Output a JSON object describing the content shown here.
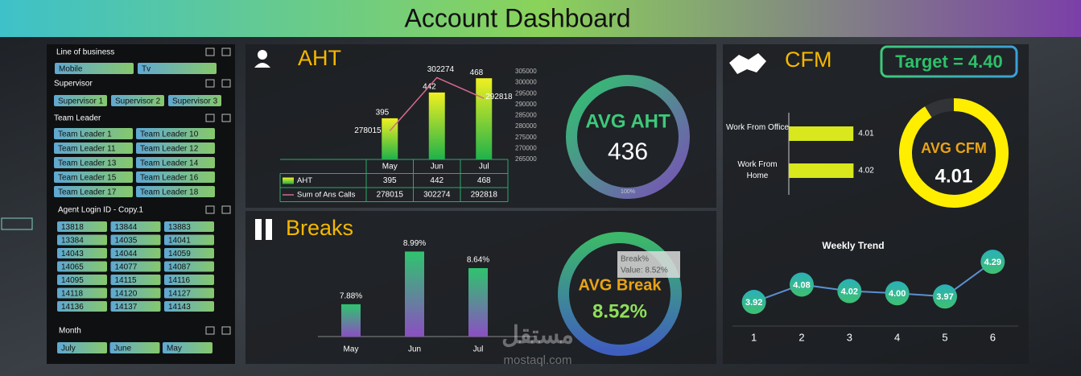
{
  "header": {
    "title": "Account Dashboard"
  },
  "slicers": [
    {
      "title": "Line of business",
      "items": [
        "Mobile",
        "Tv"
      ]
    },
    {
      "title": "Supervisor",
      "items": [
        "Supervisor 1",
        "Supervisor 2",
        "Supervisor 3"
      ]
    },
    {
      "title": "Team Leader",
      "items": [
        "Team Leader 1",
        "Team Leader 10",
        "Team Leader 11",
        "Team Leader 12",
        "Team Leader 13",
        "Team Leader 14",
        "Team Leader 15",
        "Team Leader 16",
        "Team Leader 17",
        "Team Leader 18"
      ]
    },
    {
      "title": "Agent Login ID - Copy.1",
      "items": [
        "13818",
        "13844",
        "13883",
        "13384",
        "14035",
        "14041",
        "14043",
        "14044",
        "14059",
        "14065",
        "14077",
        "14087",
        "14095",
        "14115",
        "14116",
        "14118",
        "14120",
        "14127",
        "14136",
        "14137",
        "14143"
      ]
    },
    {
      "title": "Month",
      "items": [
        "July",
        "June",
        "May"
      ]
    }
  ],
  "chart_data": [
    {
      "type": "combo",
      "title": "AHT",
      "categories": [
        "May",
        "Jun",
        "Jul"
      ],
      "ylim": [
        320,
        480
      ],
      "y2lim": [
        265000,
        305000
      ],
      "y2ticks": [
        265000,
        270000,
        275000,
        280000,
        285000,
        290000,
        295000,
        300000,
        305000
      ],
      "series": [
        {
          "name": "AHT",
          "type": "bar",
          "color": "#c8e020",
          "values": [
            395,
            442,
            468
          ]
        },
        {
          "name": "Sum of Ans Calls",
          "type": "line",
          "axis": "y2",
          "color": "#d46a8c",
          "values": [
            278015,
            302274,
            292818
          ]
        }
      ],
      "data_table": true
    },
    {
      "type": "gauge",
      "title": "AVG AHT",
      "value": 436,
      "fill": {
        "value": 100,
        "label": "100%"
      },
      "color": "#3ec97a"
    },
    {
      "type": "bar",
      "title": "Breaks",
      "categories": [
        "May",
        "Jun",
        "Jul"
      ],
      "values": [
        7.88,
        8.99,
        8.64
      ],
      "value_labels": [
        "7.88%",
        "8.99%",
        "8.64%"
      ],
      "ylim": [
        7.2,
        9.2
      ]
    },
    {
      "type": "gauge",
      "title": "AVG Break",
      "value": 8.52,
      "value_label": "8.52%",
      "tooltip": {
        "title": "Break%",
        "text": "Value: 8.52%"
      }
    },
    {
      "type": "hbar",
      "title": "CFM",
      "target": {
        "value": 4.4,
        "label": "Target = 4.40"
      },
      "categories": [
        "Work From Office",
        "Work From Home"
      ],
      "values": [
        4.01,
        4.02
      ],
      "xlim": [
        0,
        5.2
      ],
      "color": "#d8e81c"
    },
    {
      "type": "gauge",
      "title": "AVG CFM",
      "value": 4.01,
      "color": "#ffee00"
    },
    {
      "type": "line",
      "title": "Weekly Trend",
      "x": [
        1,
        2,
        3,
        4,
        5,
        6
      ],
      "values": [
        3.92,
        4.08,
        4.02,
        4.0,
        3.97,
        4.29
      ],
      "value_labels": [
        "3.92",
        "4.08",
        "4.02",
        "4.00",
        "3.97",
        "4.29"
      ],
      "xlim": [
        0.5,
        6.5
      ],
      "xticks": [
        1,
        2,
        3,
        4,
        5,
        6
      ],
      "ylim": [
        3.85,
        4.35
      ],
      "color": "#5a8fd0"
    }
  ],
  "watermark": {
    "arabic": "مستقل",
    "latin": "mostaql.com"
  }
}
